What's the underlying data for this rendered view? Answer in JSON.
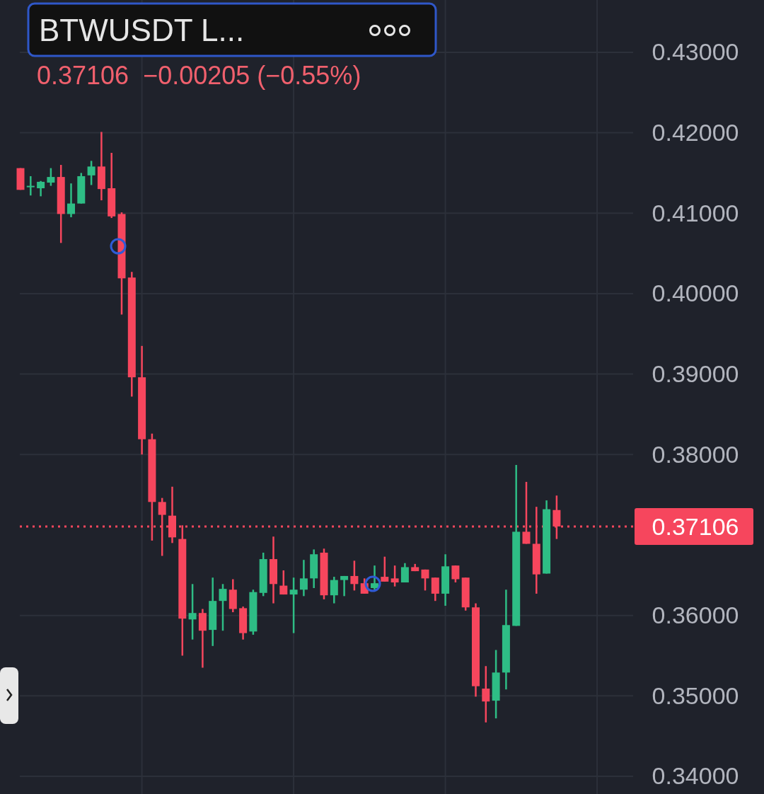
{
  "chart_data": {
    "type": "candlestick",
    "title": "BTWUSDT L...",
    "subtitle": "0.37106  −0.00205 (−0.55%)",
    "categories": [
      null,
      null,
      null,
      null,
      null,
      null,
      null,
      null,
      null,
      null,
      null,
      null,
      null,
      null,
      null,
      null,
      null,
      null,
      null,
      null,
      null,
      null,
      null,
      null,
      null,
      null,
      null,
      null,
      null,
      null,
      null,
      null,
      null,
      null,
      null,
      null,
      null,
      null,
      null,
      null,
      null,
      null,
      null,
      null,
      null,
      null,
      null,
      null,
      null,
      null,
      null,
      null,
      null,
      null
    ],
    "ohlc": [
      [
        0.4156,
        0.4156,
        0.4129,
        0.4129
      ],
      [
        0.4133,
        0.4146,
        0.4122,
        0.4134
      ],
      [
        0.4131,
        0.414,
        0.4121,
        0.4139
      ],
      [
        0.4138,
        0.4156,
        0.4134,
        0.4145
      ],
      [
        0.4145,
        0.416,
        0.4063,
        0.4099
      ],
      [
        0.4099,
        0.4137,
        0.4095,
        0.4112
      ],
      [
        0.4112,
        0.415,
        0.4112,
        0.4146
      ],
      [
        0.4147,
        0.4165,
        0.4135,
        0.4158
      ],
      [
        0.4158,
        0.4201,
        0.4116,
        0.413
      ],
      [
        0.4131,
        0.4175,
        0.4094,
        0.4096
      ],
      [
        0.4099,
        0.4101,
        0.3974,
        0.4019
      ],
      [
        0.402,
        0.4027,
        0.3872,
        0.3896
      ],
      [
        0.3896,
        0.3935,
        0.38,
        0.3819
      ],
      [
        0.3819,
        0.3826,
        0.3693,
        0.3741
      ],
      [
        0.3741,
        0.3746,
        0.3674,
        0.3725
      ],
      [
        0.3724,
        0.376,
        0.369,
        0.3697
      ],
      [
        0.3695,
        0.3712,
        0.355,
        0.3596
      ],
      [
        0.3595,
        0.3639,
        0.357,
        0.3603
      ],
      [
        0.3603,
        0.3608,
        0.3535,
        0.3581
      ],
      [
        0.3582,
        0.3647,
        0.3562,
        0.3618
      ],
      [
        0.3618,
        0.3639,
        0.3581,
        0.3633
      ],
      [
        0.3632,
        0.3645,
        0.3604,
        0.3608
      ],
      [
        0.3609,
        0.3611,
        0.357,
        0.3578
      ],
      [
        0.358,
        0.3632,
        0.3576,
        0.3629
      ],
      [
        0.3628,
        0.3678,
        0.3624,
        0.367
      ],
      [
        0.367,
        0.3698,
        0.3615,
        0.3639
      ],
      [
        0.3637,
        0.3656,
        0.3626,
        0.3626
      ],
      [
        0.3626,
        0.3647,
        0.3578,
        0.3632
      ],
      [
        0.3632,
        0.3669,
        0.3624,
        0.3646
      ],
      [
        0.3646,
        0.3682,
        0.3634,
        0.3676
      ],
      [
        0.3678,
        0.3683,
        0.362,
        0.3625
      ],
      [
        0.3625,
        0.3648,
        0.3615,
        0.3644
      ],
      [
        0.3644,
        0.3649,
        0.3624,
        0.3649
      ],
      [
        0.3649,
        0.3668,
        0.3631,
        0.3639
      ],
      [
        0.364,
        0.3646,
        0.3627,
        0.3627
      ],
      [
        0.3634,
        0.3662,
        0.3632,
        0.364
      ],
      [
        0.3648,
        0.3673,
        0.3642,
        0.3642
      ],
      [
        0.3646,
        0.3662,
        0.3636,
        0.3641
      ],
      [
        0.3641,
        0.3665,
        0.3641,
        0.366
      ],
      [
        0.366,
        0.3664,
        0.3655,
        0.3655
      ],
      [
        0.3657,
        0.3657,
        0.3631,
        0.3646
      ],
      [
        0.3647,
        0.3647,
        0.3618,
        0.3627
      ],
      [
        0.3627,
        0.3676,
        0.3612,
        0.3661
      ],
      [
        0.3662,
        0.3662,
        0.3641,
        0.3645
      ],
      [
        0.3647,
        0.3647,
        0.3606,
        0.361
      ],
      [
        0.361,
        0.3615,
        0.3499,
        0.3512
      ],
      [
        0.3509,
        0.3537,
        0.3467,
        0.3493
      ],
      [
        0.3494,
        0.3557,
        0.3472,
        0.3529
      ],
      [
        0.3529,
        0.3632,
        0.3508,
        0.3588
      ],
      [
        0.3587,
        0.3787,
        0.3587,
        0.3704
      ],
      [
        0.3704,
        0.3766,
        0.3689,
        0.3689
      ],
      [
        0.3689,
        0.3735,
        0.3627,
        0.3651
      ],
      [
        0.3652,
        0.3743,
        0.3652,
        0.3732
      ],
      [
        0.3731,
        0.3749,
        0.3695,
        0.37106
      ]
    ],
    "colors": [
      "#f6465d",
      "#2ebd85",
      "#2ebd85",
      "#2ebd85",
      "#f6465d",
      "#2ebd85",
      "#2ebd85",
      "#2ebd85",
      "#f6465d",
      "#f6465d",
      "#f6465d",
      "#f6465d",
      "#f6465d",
      "#f6465d",
      "#f6465d",
      "#f6465d",
      "#f6465d",
      "#2ebd85",
      "#f6465d",
      "#2ebd85",
      "#2ebd85",
      "#f6465d",
      "#f6465d",
      "#2ebd85",
      "#2ebd85",
      "#f6465d",
      "#f6465d",
      "#2ebd85",
      "#2ebd85",
      "#2ebd85",
      "#f6465d",
      "#2ebd85",
      "#2ebd85",
      "#f6465d",
      "#f6465d",
      "#2ebd85",
      "#f6465d",
      "#f6465d",
      "#2ebd85",
      "#f6465d",
      "#f6465d",
      "#f6465d",
      "#2ebd85",
      "#f6465d",
      "#f6465d",
      "#f6465d",
      "#f6465d",
      "#2ebd85",
      "#2ebd85",
      "#2ebd85",
      "#f6465d",
      "#f6465d",
      "#2ebd85",
      "#f6465d"
    ],
    "ylim": [
      0.3378,
      0.4365
    ],
    "yticks": [
      {
        "value": 0.43,
        "label": "0.43000"
      },
      {
        "value": 0.42,
        "label": "0.42000"
      },
      {
        "value": 0.41,
        "label": "0.41000"
      },
      {
        "value": 0.4,
        "label": "0.40000"
      },
      {
        "value": 0.39,
        "label": "0.39000"
      },
      {
        "value": 0.38,
        "label": "0.38000"
      },
      {
        "value": 0.36,
        "label": "0.36000"
      },
      {
        "value": 0.35,
        "label": "0.35000"
      },
      {
        "value": 0.34,
        "label": "0.34000"
      }
    ],
    "ref_lines": [
      {
        "axis": "y",
        "value": 0.37106,
        "label": "0.37106",
        "color": "#f6465d",
        "line_style": "dotted"
      }
    ],
    "grid": true,
    "tick_labels": "y"
  }
}
